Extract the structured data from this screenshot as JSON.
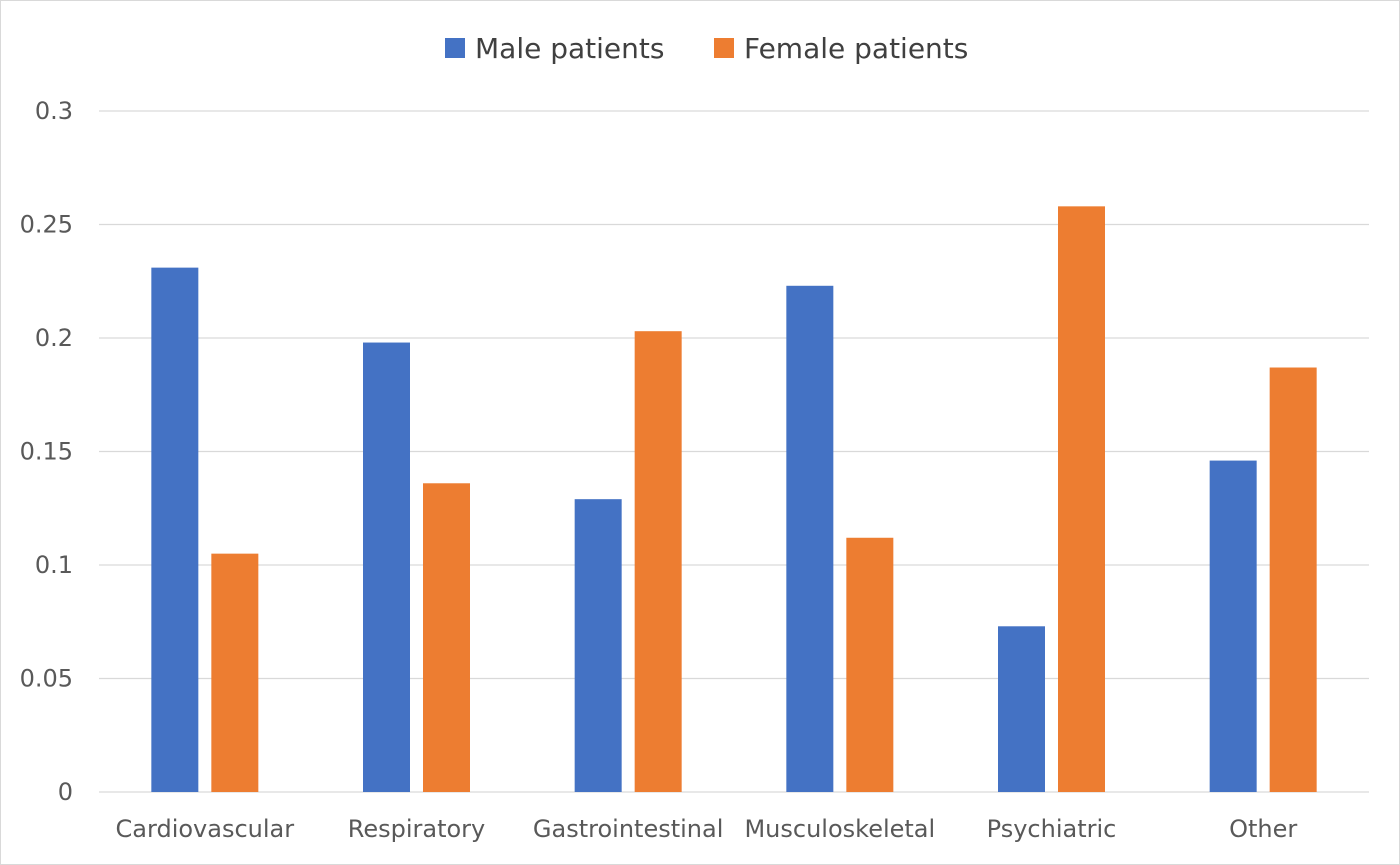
{
  "chart_data": {
    "type": "bar",
    "title": "",
    "xlabel": "",
    "ylabel": "",
    "categories": [
      "Cardiovascular",
      "Respiratory",
      "Gastrointestinal",
      "Musculoskeletal",
      "Psychiatric",
      "Other"
    ],
    "series": [
      {
        "name": "Male patients",
        "color": "#4472C4",
        "values": [
          0.231,
          0.198,
          0.129,
          0.223,
          0.073,
          0.146
        ]
      },
      {
        "name": "Female patients",
        "color": "#ED7D31",
        "values": [
          0.105,
          0.136,
          0.203,
          0.112,
          0.258,
          0.187
        ]
      }
    ],
    "ylim": [
      0,
      0.3
    ],
    "yticks": [
      "0",
      "0.05",
      "0.1",
      "0.15",
      "0.2",
      "0.25",
      "0.3"
    ],
    "grid": true,
    "legend_position": "top-center",
    "gridline_color": "#d9d9d9"
  }
}
